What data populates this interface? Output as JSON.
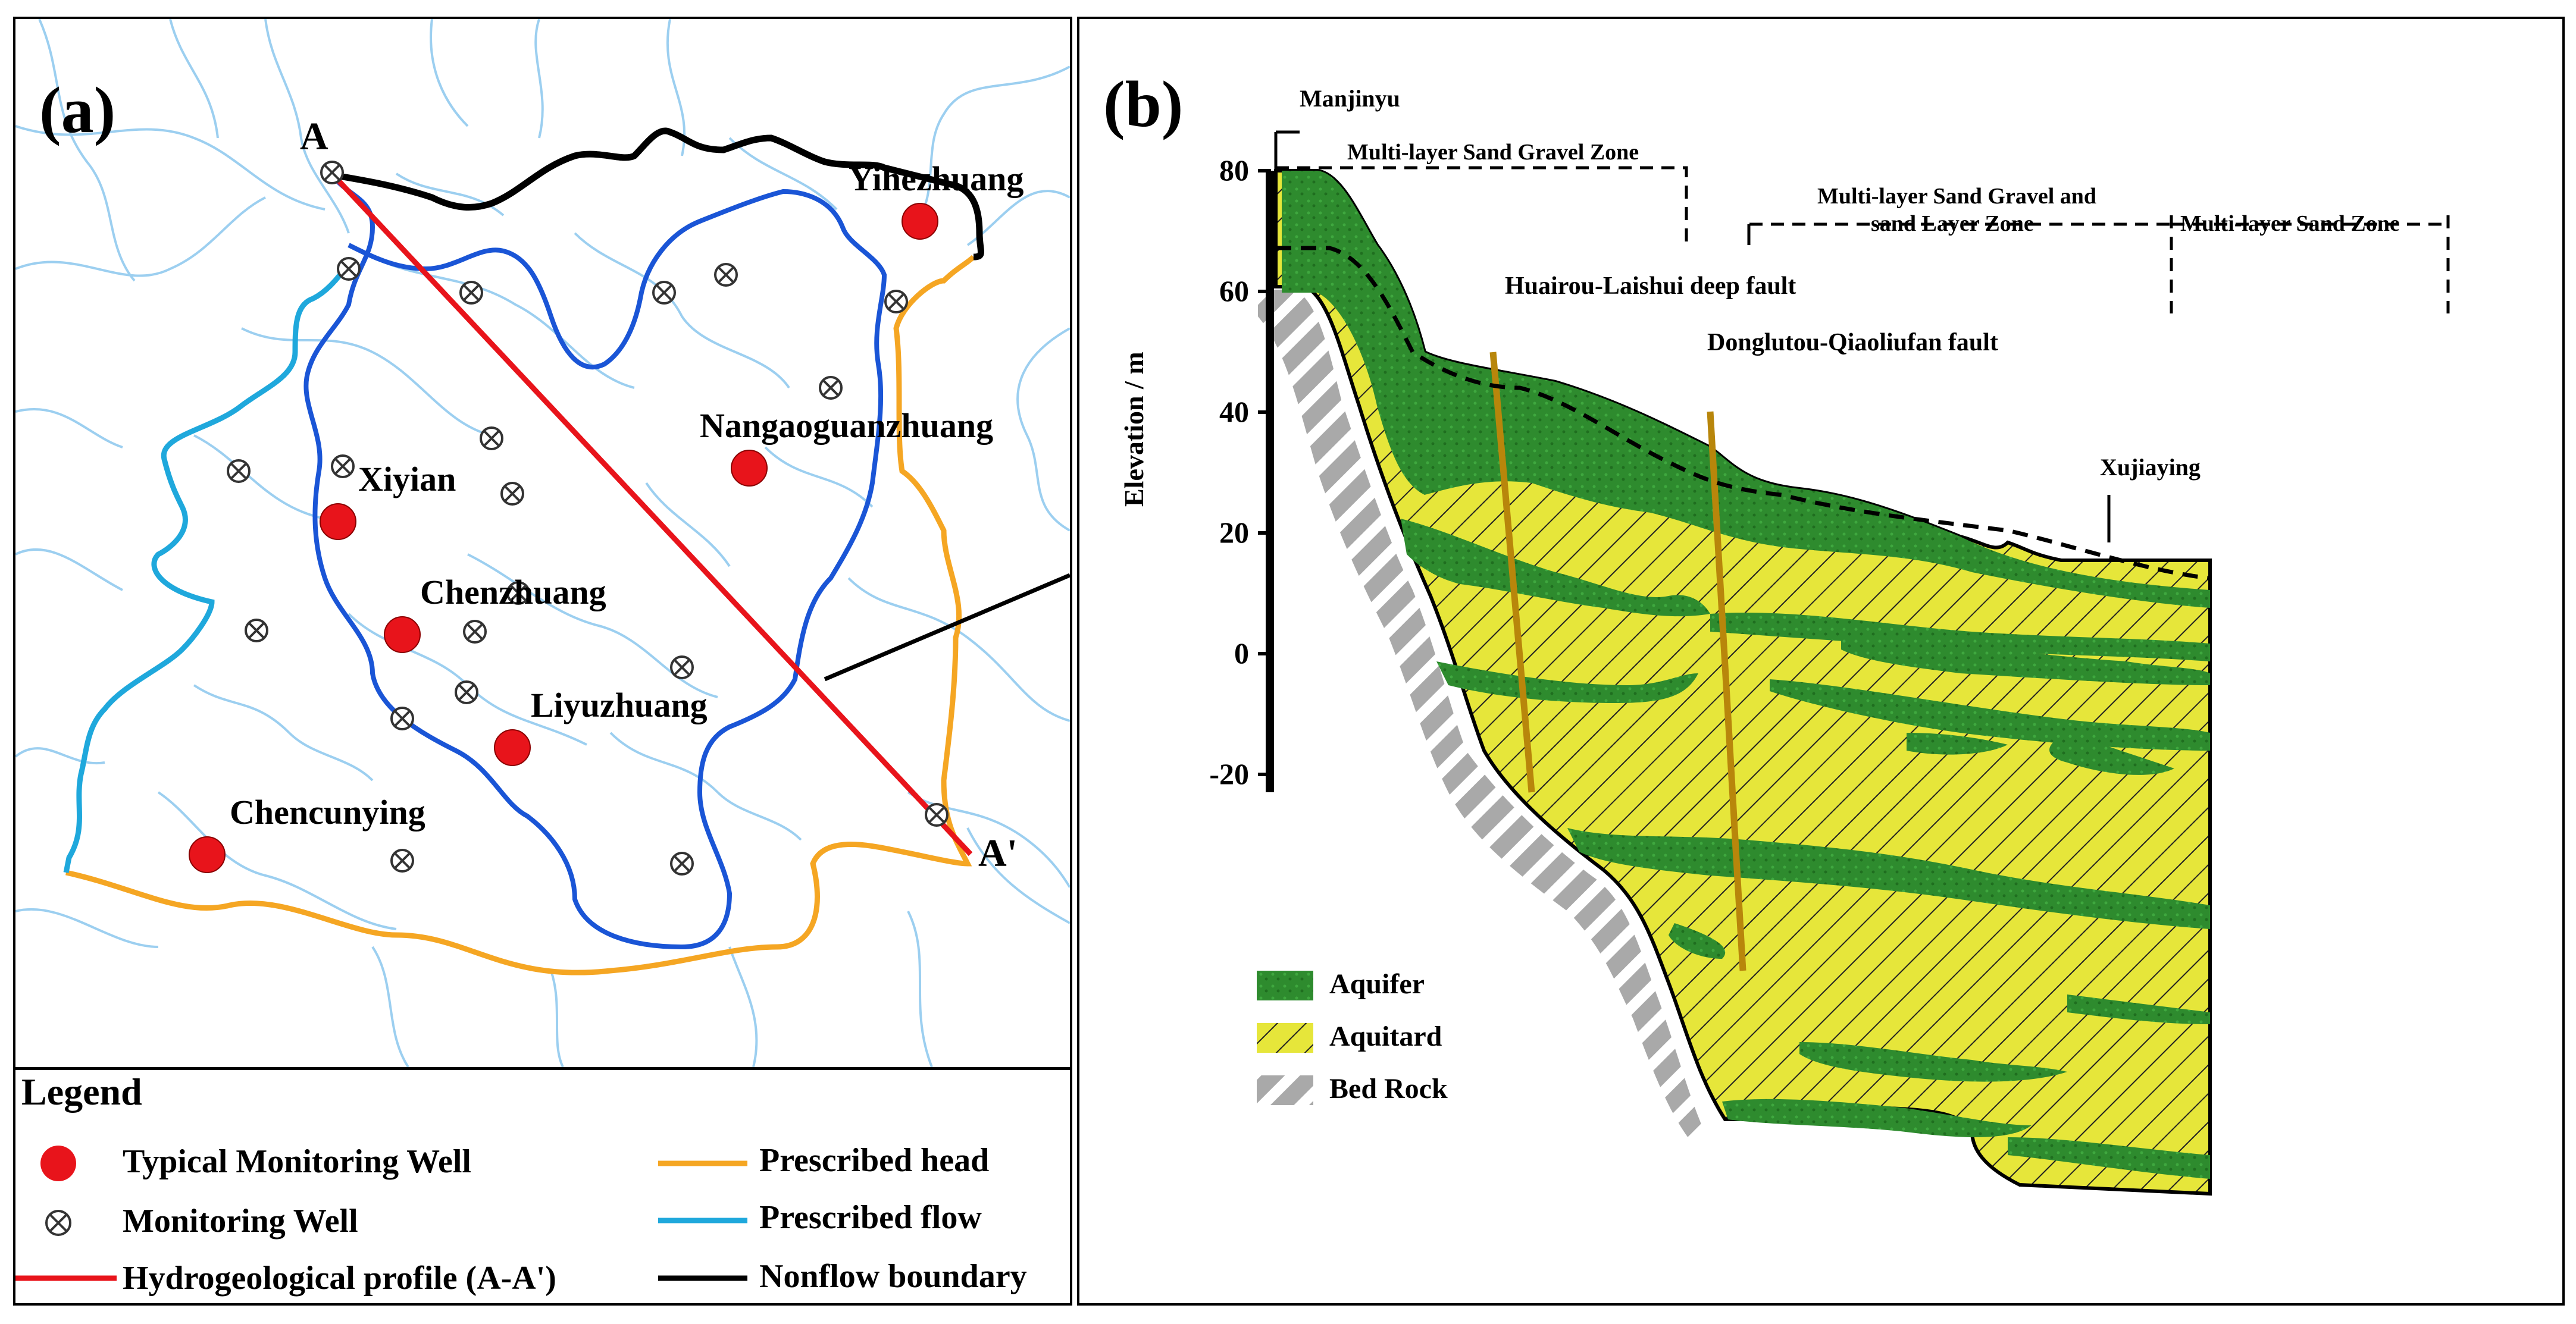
{
  "panel_a": {
    "tag": "(a)",
    "point_a": "A",
    "point_a_prime": "A'",
    "wells": {
      "yihezhuang": "Yihezhuang",
      "nangaoguanzhuang": "Nangaoguanzhuang",
      "xiyian": "Xiyian",
      "chenzhuang": "Chenzhuang",
      "liyuzhuang": "Liyuzhuang",
      "chencunying": "Chencunying"
    }
  },
  "legend": {
    "title": "Legend",
    "items": {
      "typical_well": "Typical Monitoring Well",
      "monitoring_well": "Monitoring Well",
      "profile": "Hydrogeological profile (A-A')",
      "prescribed_head": "Prescribed head",
      "prescribed_flow": "Prescribed flow",
      "nonflow": "Nonflow boundary"
    }
  },
  "panel_b": {
    "tag": "(b)",
    "y_axis_label": "Elevation / m",
    "y_ticks": [
      "80",
      "60",
      "40",
      "20",
      "0",
      "-20"
    ],
    "place_manjinyu": "Manjinyu",
    "place_xujiaying": "Xujiaying",
    "zone_1": "Multi-layer Sand Gravel Zone",
    "zone_2_line1": "Multi-layer Sand Gravel and",
    "zone_2_line2": "sand Layer Zone",
    "zone_3": "Multi-layer Sand Zone",
    "fault_1": "Huairou-Laishui deep fault",
    "fault_2": "Donglutou-Qiaoliufan fault",
    "legend_aquifer": "Aquifer",
    "legend_aquitard": "Aquitard",
    "legend_bedrock": "Bed Rock"
  },
  "colors": {
    "prescribed_head": "#F5A623",
    "prescribed_flow": "#1FA8DC",
    "nonflow": "#000000",
    "profile": "#E8141B",
    "well": "#E8141B",
    "river": "#9CCFF0",
    "aquifer": "#2E8B2E",
    "aquitard": "#E6E63A",
    "bedrock": "#A9A9A9",
    "fault": "#B8860B"
  }
}
